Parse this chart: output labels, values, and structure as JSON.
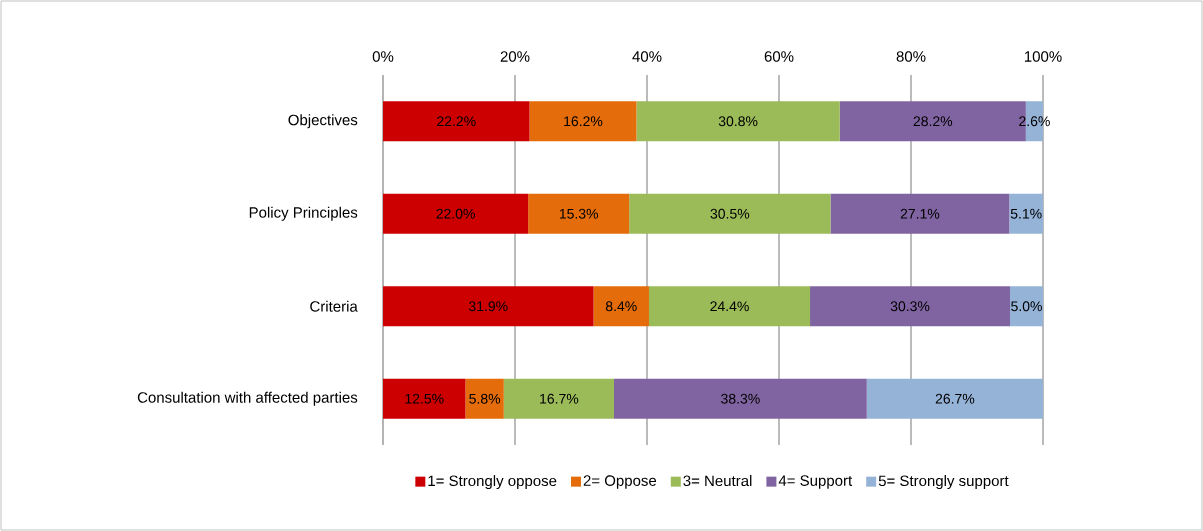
{
  "chart_data": {
    "type": "bar",
    "orientation": "horizontal",
    "stacked": true,
    "categories": [
      "Objectives",
      "Policy Principles",
      "Criteria",
      "Consultation with affected parties"
    ],
    "series": [
      {
        "name": "1= Strongly oppose",
        "color": "#cc0000",
        "values": [
          22.2,
          22.0,
          31.9,
          12.5
        ],
        "value_labels": [
          "22.2%",
          "22.0%",
          "31.9%",
          "12.5%"
        ]
      },
      {
        "name": "2= Oppose",
        "color": "#e46c0a",
        "values": [
          16.2,
          15.3,
          8.4,
          5.8
        ],
        "value_labels": [
          "16.2%",
          "15.3%",
          "8.4%",
          "5.8%"
        ]
      },
      {
        "name": "3= Neutral",
        "color": "#9bbb59",
        "values": [
          30.8,
          30.5,
          24.4,
          16.7
        ],
        "value_labels": [
          "30.8%",
          "30.5%",
          "24.4%",
          "16.7%"
        ]
      },
      {
        "name": "4= Support",
        "color": "#8064a2",
        "values": [
          28.2,
          27.1,
          30.3,
          38.3
        ],
        "value_labels": [
          "28.2%",
          "27.1%",
          "30.3%",
          "38.3%"
        ]
      },
      {
        "name": "5= Strongly support",
        "color": "#95b3d7",
        "values": [
          2.6,
          5.1,
          5.0,
          26.7
        ],
        "value_labels": [
          "2.6%",
          "5.1%",
          "5.0%",
          "26.7%"
        ]
      }
    ],
    "xlim": [
      0,
      100
    ],
    "xticks": [
      {
        "value": 0,
        "label": "0%"
      },
      {
        "value": 20,
        "label": "20%"
      },
      {
        "value": 40,
        "label": "40%"
      },
      {
        "value": 60,
        "label": "60%"
      },
      {
        "value": 80,
        "label": "80%"
      },
      {
        "value": 100,
        "label": "100%"
      }
    ],
    "grid": "x",
    "legend": "bottom"
  }
}
